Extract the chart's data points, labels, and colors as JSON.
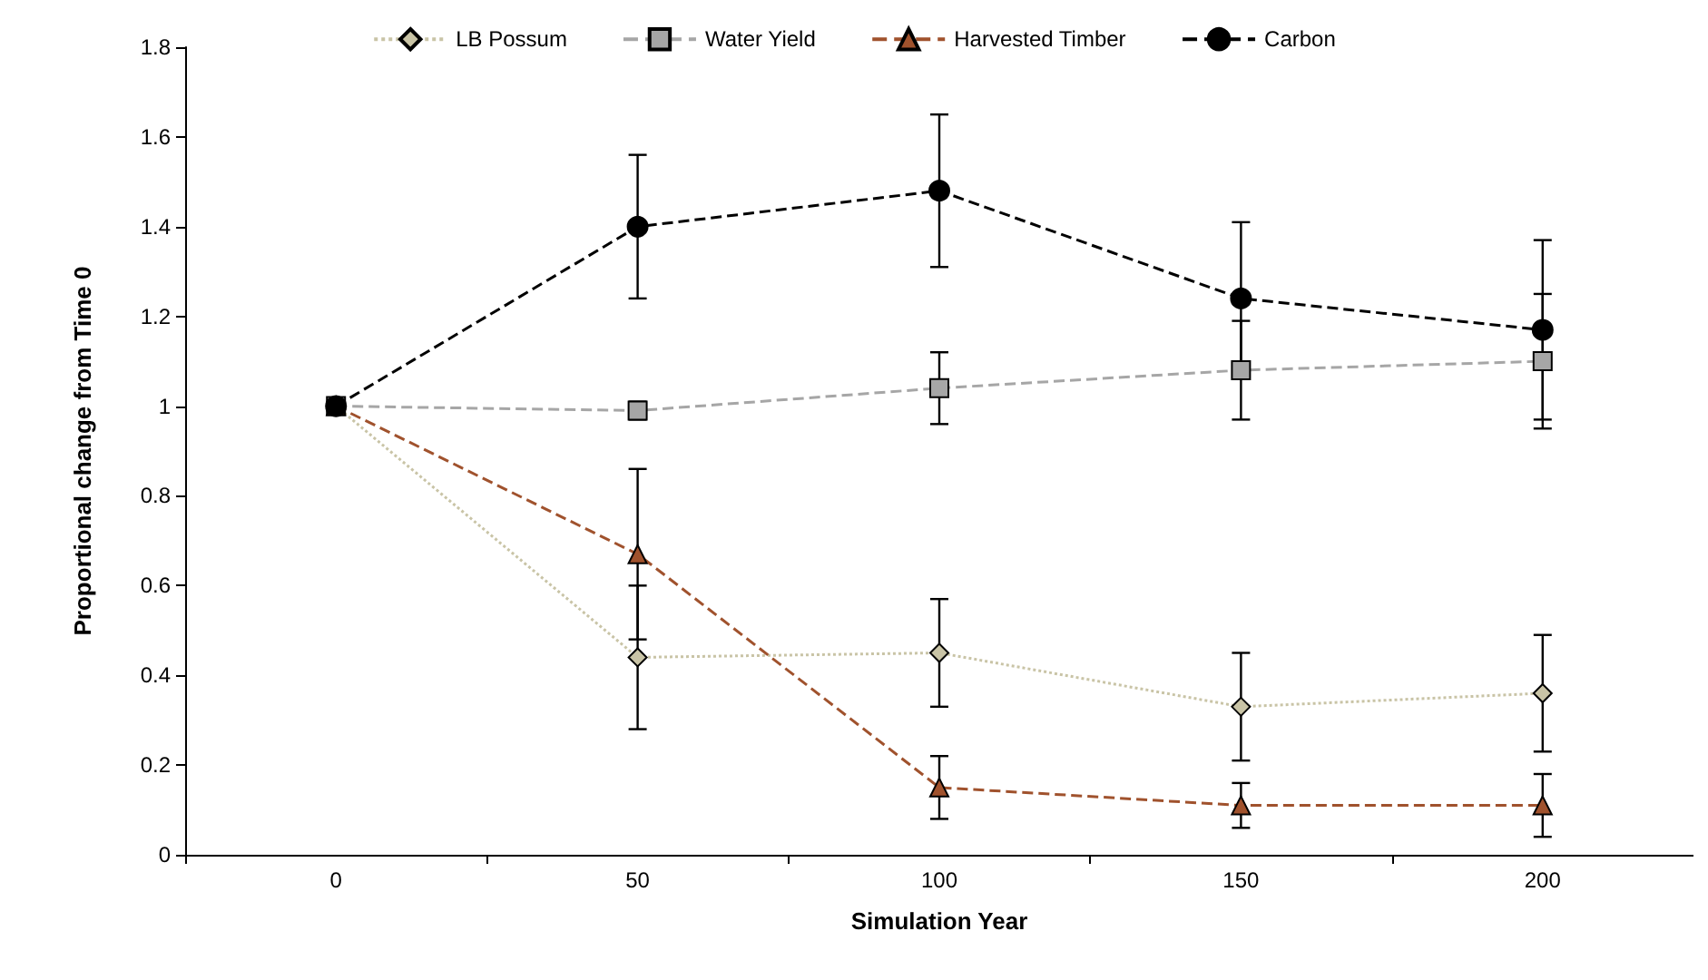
{
  "chart_data": {
    "type": "line",
    "xlabel": "Simulation Year",
    "ylabel": "Proportional change from Time 0",
    "categories": [
      "0",
      "50",
      "100",
      "150",
      "200"
    ],
    "series": [
      {
        "name": "LB Possum",
        "color": "#c9c4a6",
        "marker": "diamond",
        "line_style": "dotted",
        "values": [
          1,
          0.44,
          0.45,
          0.33,
          0.36
        ],
        "errors": [
          null,
          0.16,
          0.12,
          0.12,
          0.13
        ]
      },
      {
        "name": "Water Yield",
        "color": "#a6a6a6",
        "marker": "square",
        "line_style": "dashed",
        "values": [
          1,
          0.99,
          1.04,
          1.08,
          1.1
        ],
        "errors": [
          null,
          0.02,
          0.08,
          0.11,
          0.15
        ]
      },
      {
        "name": "Harvested Timber",
        "color": "#a0522d",
        "marker": "triangle",
        "line_style": "dashed",
        "values": [
          1,
          0.67,
          0.15,
          0.11,
          0.11
        ],
        "errors": [
          null,
          0.19,
          0.07,
          0.05,
          0.07
        ]
      },
      {
        "name": "Carbon",
        "color": "#000000",
        "marker": "circle",
        "line_style": "dashed",
        "values": [
          1,
          1.4,
          1.48,
          1.24,
          1.17
        ],
        "errors": [
          null,
          0.16,
          0.17,
          0.17,
          0.2
        ]
      }
    ],
    "ylim": [
      0,
      1.8
    ],
    "yticks": [
      0,
      0.2,
      0.4,
      0.6,
      0.8,
      1,
      1.2,
      1.4,
      1.6,
      1.8
    ],
    "grid": false,
    "legend": "top"
  }
}
